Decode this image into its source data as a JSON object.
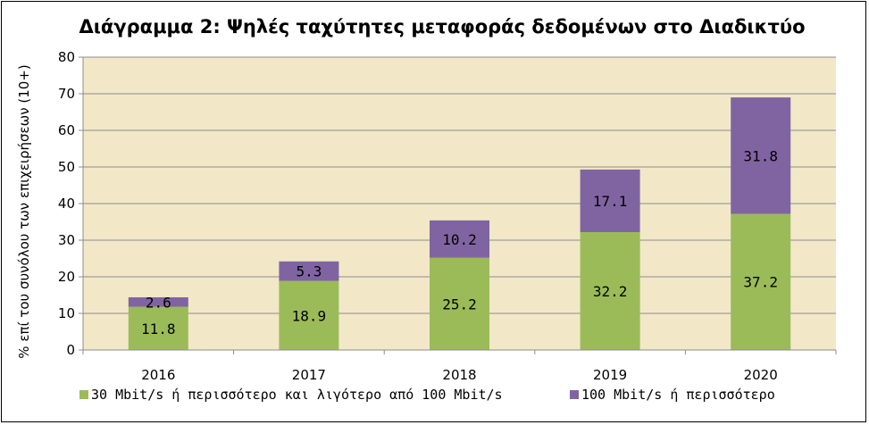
{
  "chart_data": {
    "type": "bar",
    "stacked": true,
    "title": "Διάγραμμα 2: Ψηλές ταχύτητες μεταφοράς δεδομένων στο Διαδικτύο",
    "xlabel": "",
    "ylabel": "% επί του συνόλου των επιχειρήσεων (10+)",
    "categories": [
      "2016",
      "2017",
      "2018",
      "2019",
      "2020"
    ],
    "series": [
      {
        "name": "30 Mbit/s ή περισσότερο και λιγότερο από 100 Mbit/s",
        "values": [
          11.8,
          18.9,
          25.2,
          32.2,
          37.2
        ],
        "color": "#9bbb59"
      },
      {
        "name": "100 Mbit/s ή περισσότερο",
        "values": [
          2.6,
          5.3,
          10.2,
          17.1,
          31.8
        ],
        "color": "#8064a2"
      }
    ],
    "ylim": [
      0,
      80
    ],
    "yticks": [
      0,
      10,
      20,
      30,
      40,
      50,
      60,
      70,
      80
    ],
    "grid": true,
    "legend": "bottom",
    "plot_background": "#f2e8c8"
  }
}
